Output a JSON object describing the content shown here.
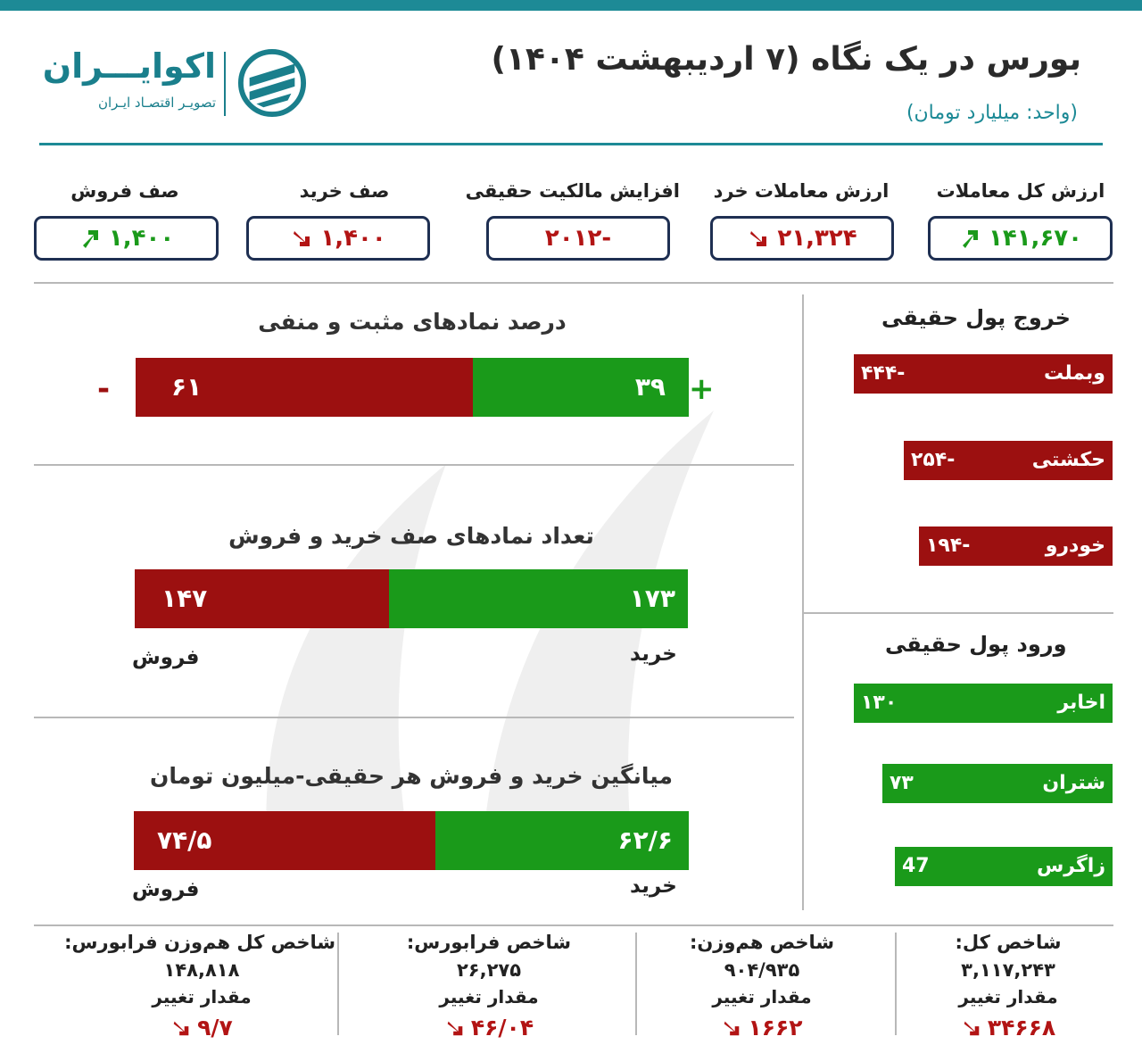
{
  "header": {
    "title": "بورس در یک نگاه (۷ اردیبهشت ۱۴۰۴)",
    "unit": "(واحد: میلیارد تومان)",
    "logo_name": "اکوایـــران",
    "logo_tagline": "تصویـر اقتصـاد ایـران"
  },
  "stats": [
    {
      "label": "ارزش کل معاملات",
      "value": "۱۴۱,۶۷۰",
      "trend": "up",
      "color": "#1a9a1a"
    },
    {
      "label": "ارزش معاملات خرد",
      "value": "۲۱,۳۲۴",
      "trend": "down",
      "color": "#b21414"
    },
    {
      "label": "افزایش مالکیت حقیقی",
      "value": "-۲۰۱۲",
      "trend": "none",
      "color": "#b21414"
    },
    {
      "label": "صف خرید",
      "value": "۱,۴۰۰",
      "trend": "down",
      "color": "#b21414"
    },
    {
      "label": "صف فروش",
      "value": "۱,۴۰۰",
      "trend": "up",
      "color": "#1a9a1a"
    }
  ],
  "chart_data": [
    {
      "type": "bar",
      "title": "درصد نمادهای مثبت و منفی",
      "series": [
        {
          "name": "+",
          "value": 39,
          "label": "۳۹",
          "color": "#1a9a1a"
        },
        {
          "name": "-",
          "value": 61,
          "label": "۶۱",
          "color": "#9c1010"
        }
      ]
    },
    {
      "type": "bar",
      "title": "تعداد نمادهای صف خرید و فروش",
      "series": [
        {
          "name": "خرید",
          "value": 173,
          "label": "۱۷۳",
          "color": "#1a9a1a"
        },
        {
          "name": "فروش",
          "value": 147,
          "label": "۱۴۷",
          "color": "#9c1010"
        }
      ]
    },
    {
      "type": "bar",
      "title": "میانگین خرید و فروش هر حقیقی-میلیون تومان",
      "series": [
        {
          "name": "خرید",
          "value": 62.6,
          "label": "۶۲/۶",
          "color": "#1a9a1a"
        },
        {
          "name": "فروش",
          "value": 74.5,
          "label": "۷۴/۵",
          "color": "#9c1010"
        }
      ]
    },
    {
      "type": "bar",
      "title": "خروج پول حقیقی",
      "categories": [
        "وبملت",
        "حکشتی",
        "خودرو"
      ],
      "values": [
        -444,
        -254,
        -194
      ],
      "labels": [
        "-۴۴۴",
        "-۲۵۴",
        "-۱۹۴"
      ],
      "color": "#9c1010"
    },
    {
      "type": "bar",
      "title": "ورود پول حقیقی",
      "categories": [
        "اخابر",
        "شتران",
        "زاگرس"
      ],
      "values": [
        130,
        73,
        47
      ],
      "labels": [
        "۱۳۰",
        "۷۳",
        "47"
      ],
      "color": "#1a9a1a"
    }
  ],
  "indices": [
    {
      "name": "شاخص کل:",
      "value": "۳,۱۱۷,۲۴۳",
      "change_label": "مقدار تغییر",
      "change": "۳۴۶۶۸",
      "trend": "down"
    },
    {
      "name": "شاخص هم‌وزن:",
      "value": "۹۰۴/۹۳۵",
      "change_label": "مقدار تغییر",
      "change": "۱۶۶۲",
      "trend": "down"
    },
    {
      "name": "شاخص فرابورس:",
      "value": "۲۶,۲۷۵",
      "change_label": "مقدار تغییر",
      "change": "۴۶/۰۴",
      "trend": "down"
    },
    {
      "name": "شاخص کل هم‌وزن فرابورس:",
      "value": "۱۴۸,۸۱۸",
      "change_label": "مقدار تغییر",
      "change": "۹/۷",
      "trend": "down"
    }
  ],
  "colors": {
    "accent": "#1d8a96",
    "box_border": "#1e2f52",
    "positive": "#1a9a1a",
    "negative": "#b21414"
  }
}
